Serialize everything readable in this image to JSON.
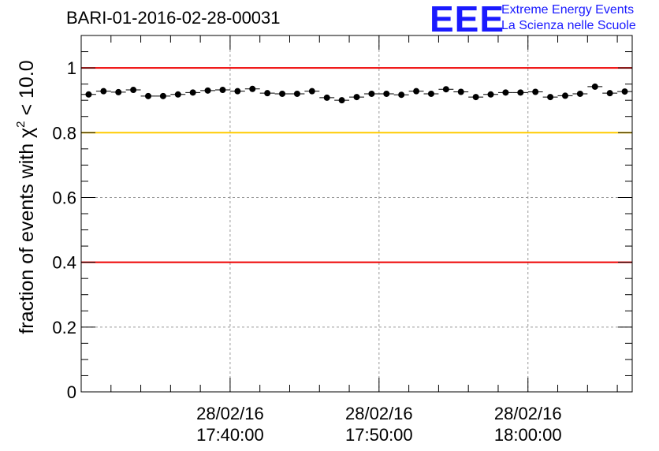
{
  "chart_data": {
    "type": "scatter",
    "title": "BARI-01-2016-02-28-00031",
    "ylabel_prefix": "fraction of events with ",
    "ylabel_symbol": "χ",
    "ylabel_power": "2",
    "ylabel_suffix": " < 10.0",
    "ylim": [
      0,
      1.1
    ],
    "yticks": [
      0,
      0.2,
      0.4,
      0.6,
      0.8,
      1
    ],
    "ytick_labels": [
      "0",
      "0.2",
      "0.4",
      "0.6",
      "0.8",
      "1"
    ],
    "xlim_minutes": [
      0,
      37
    ],
    "xticks": [
      {
        "t": 10,
        "date": "28/02/16",
        "time": "17:40:00"
      },
      {
        "t": 20,
        "date": "28/02/16",
        "time": "17:50:00"
      },
      {
        "t": 30,
        "date": "28/02/16",
        "time": "18:00:00"
      }
    ],
    "reference_lines": [
      {
        "y": 1.0,
        "color": "#ee0000"
      },
      {
        "y": 0.8,
        "color": "#ffcc00"
      },
      {
        "y": 0.4,
        "color": "#ee0000"
      }
    ],
    "grid": true,
    "series": [
      {
        "name": "fraction",
        "x": [
          0.5,
          1.5,
          2.5,
          3.5,
          4.5,
          5.5,
          6.5,
          7.5,
          8.5,
          9.5,
          10.5,
          11.5,
          12.5,
          13.5,
          14.5,
          15.5,
          16.5,
          17.5,
          18.5,
          19.5,
          20.5,
          21.5,
          22.5,
          23.5,
          24.5,
          25.5,
          26.5,
          27.5,
          28.5,
          29.5,
          30.5,
          31.5,
          32.5,
          33.5,
          34.5,
          35.5,
          36.5
        ],
        "y": [
          0.918,
          0.928,
          0.925,
          0.932,
          0.913,
          0.913,
          0.918,
          0.924,
          0.93,
          0.932,
          0.928,
          0.935,
          0.922,
          0.92,
          0.92,
          0.928,
          0.908,
          0.9,
          0.91,
          0.92,
          0.92,
          0.917,
          0.928,
          0.92,
          0.934,
          0.926,
          0.91,
          0.918,
          0.924,
          0.924,
          0.926,
          0.91,
          0.914,
          0.92,
          0.942,
          0.922,
          0.927
        ]
      }
    ]
  },
  "logo": {
    "mark": "EEE",
    "line1": "Extreme Energy Events",
    "line2": "La Scienza nelle Scuole"
  }
}
